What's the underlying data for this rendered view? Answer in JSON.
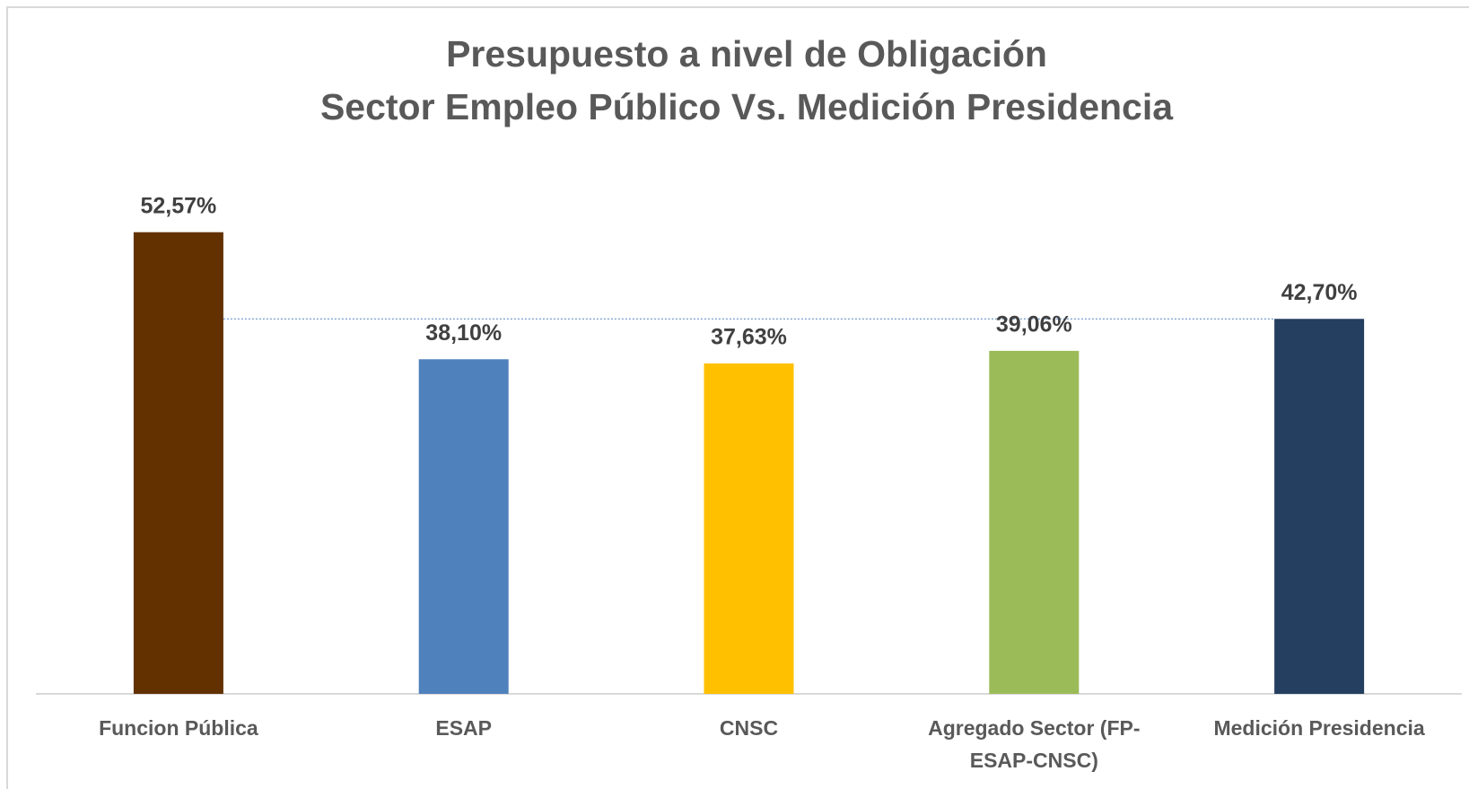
{
  "chart_data": {
    "type": "bar",
    "title": [
      "Presupuesto a nivel de Obligación",
      "Sector Empleo Público Vs. Medición Presidencia"
    ],
    "categories": [
      "Funcion Pública",
      "ESAP",
      "CNSC",
      "Agregado Sector (FP-ESAP-CNSC)",
      "Medición Presidencia"
    ],
    "values": [
      52.57,
      38.1,
      37.63,
      39.06,
      42.7
    ],
    "value_labels": [
      "52,57%",
      "38,10%",
      "37,63%",
      "39,06%",
      "42,70%"
    ],
    "colors": [
      "#633100",
      "#4f81bd",
      "#ffc000",
      "#9bbb59",
      "#243f60"
    ],
    "ylim": [
      0,
      60
    ]
  }
}
